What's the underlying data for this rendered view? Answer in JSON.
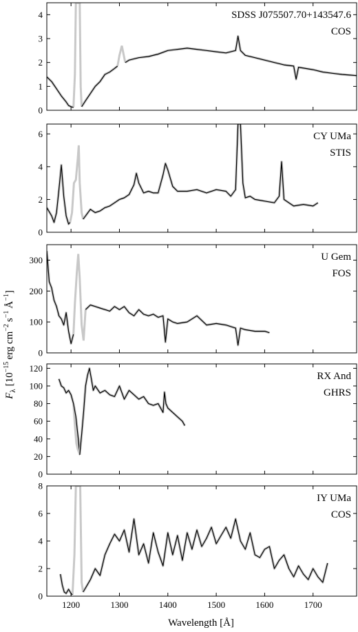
{
  "figure": {
    "xlabel": "Wavelength [Å]",
    "ylabel_main": "F",
    "ylabel_sub": "λ",
    "ylabel_unit_open": "[10",
    "ylabel_exp1": "−15",
    "ylabel_unit_mid1": "erg cm",
    "ylabel_exp2": "−2",
    "ylabel_unit_mid2": "s",
    "ylabel_exp3": "−1",
    "ylabel_unit_mid3": "Å",
    "ylabel_exp4": "−1",
    "ylabel_unit_close": "]"
  },
  "chart_data": [
    {
      "type": "line",
      "labels": [
        "SDSS J075507.70+143547.6",
        "COS"
      ],
      "xlim": [
        1150,
        1790
      ],
      "ylim": [
        0,
        4.5
      ],
      "yticks": [
        0,
        1,
        2,
        3,
        4
      ],
      "xticks": [
        1200,
        1300,
        1400,
        1500,
        1600,
        1700
      ],
      "show_xtick_labels": false,
      "colors": {
        "data": "#000000",
        "masked": "#c8c8c8"
      },
      "series": [
        {
          "x": [
            1150,
            1160,
            1170,
            1180,
            1190,
            1195,
            1200,
            1205
          ],
          "y": [
            1.4,
            1.2,
            0.9,
            0.6,
            0.35,
            0.2,
            0.15,
            0.12
          ]
        },
        {
          "x": [
            1222,
            1230,
            1240,
            1250,
            1260,
            1270,
            1280,
            1290,
            1296
          ],
          "y": [
            0.15,
            0.4,
            0.7,
            1.0,
            1.2,
            1.5,
            1.6,
            1.75,
            1.85
          ]
        },
        {
          "x": [
            1312,
            1320,
            1340,
            1360,
            1380,
            1400,
            1420,
            1440,
            1460,
            1480,
            1500,
            1520,
            1540,
            1545,
            1550,
            1560,
            1580,
            1600,
            1620,
            1640,
            1660,
            1665,
            1670,
            1700,
            1720,
            1740,
            1760,
            1790
          ],
          "y": [
            2.0,
            2.1,
            2.2,
            2.25,
            2.35,
            2.5,
            2.55,
            2.6,
            2.55,
            2.5,
            2.45,
            2.4,
            2.5,
            3.1,
            2.5,
            2.3,
            2.2,
            2.1,
            2.0,
            1.9,
            1.85,
            1.3,
            1.8,
            1.7,
            1.6,
            1.55,
            1.5,
            1.45
          ]
        }
      ],
      "masked": [
        {
          "x": [
            1205,
            1208,
            1210,
            1212,
            1215,
            1218,
            1220,
            1222
          ],
          "y": [
            0.12,
            1.5,
            4.5,
            4.5,
            4.5,
            4.5,
            1.0,
            0.15
          ]
        },
        {
          "x": [
            1296,
            1300,
            1305,
            1310,
            1312
          ],
          "y": [
            1.85,
            2.3,
            2.7,
            2.2,
            2.0
          ]
        }
      ]
    },
    {
      "type": "line",
      "labels": [
        "CY UMa",
        "STIS"
      ],
      "xlim": [
        1150,
        1790
      ],
      "ylim": [
        0,
        6.6
      ],
      "yticks": [
        0,
        2,
        4,
        6
      ],
      "xticks": [
        1200,
        1300,
        1400,
        1500,
        1600,
        1700
      ],
      "show_xtick_labels": false,
      "colors": {
        "data": "#000000",
        "masked": "#c8c8c8"
      },
      "series": [
        {
          "x": [
            1150,
            1160,
            1165,
            1170,
            1175,
            1180,
            1185,
            1190,
            1195,
            1198
          ],
          "y": [
            1.5,
            1.0,
            0.6,
            1.2,
            2.6,
            4.1,
            2.2,
            1.0,
            0.5,
            0.6
          ]
        },
        {
          "x": [
            1225,
            1230,
            1240,
            1250,
            1260,
            1270,
            1280,
            1290,
            1300,
            1310,
            1320,
            1330,
            1335,
            1340,
            1350,
            1360,
            1370,
            1380,
            1390,
            1395,
            1400,
            1410,
            1420,
            1440,
            1460,
            1480,
            1500,
            1520,
            1530,
            1540,
            1545,
            1550,
            1555,
            1560,
            1570,
            1580,
            1600,
            1620,
            1630,
            1635,
            1640,
            1650,
            1660,
            1680,
            1700,
            1710
          ],
          "y": [
            0.8,
            1.0,
            1.4,
            1.2,
            1.3,
            1.5,
            1.6,
            1.8,
            2.0,
            2.1,
            2.3,
            2.9,
            3.6,
            3.0,
            2.4,
            2.5,
            2.4,
            2.4,
            3.5,
            4.2,
            3.8,
            2.8,
            2.5,
            2.5,
            2.6,
            2.4,
            2.6,
            2.5,
            2.2,
            2.6,
            6.6,
            6.6,
            3.0,
            2.1,
            2.2,
            2.0,
            1.9,
            1.8,
            2.2,
            4.3,
            2.0,
            1.8,
            1.6,
            1.7,
            1.6,
            1.8
          ]
        }
      ],
      "masked": [
        {
          "x": [
            1198,
            1202,
            1206,
            1210,
            1214,
            1216,
            1218,
            1222,
            1225
          ],
          "y": [
            0.6,
            1.2,
            3.0,
            3.2,
            4.5,
            5.3,
            3.0,
            1.2,
            0.8
          ]
        }
      ]
    },
    {
      "type": "line",
      "labels": [
        "U Gem",
        "FOS"
      ],
      "xlim": [
        1150,
        1790
      ],
      "ylim": [
        0,
        350
      ],
      "yticks": [
        0,
        100,
        200,
        300
      ],
      "xticks": [
        1200,
        1300,
        1400,
        1500,
        1600,
        1700
      ],
      "show_xtick_labels": false,
      "colors": {
        "data": "#000000",
        "masked": "#c8c8c8"
      },
      "series": [
        {
          "x": [
            1150,
            1155,
            1160,
            1165,
            1170,
            1175,
            1180,
            1185,
            1190,
            1195,
            1200,
            1205
          ],
          "y": [
            330,
            230,
            210,
            170,
            150,
            120,
            110,
            90,
            130,
            70,
            30,
            60
          ]
        },
        {
          "x": [
            1230,
            1240,
            1250,
            1260,
            1270,
            1280,
            1290,
            1300,
            1310,
            1320,
            1330,
            1340,
            1350,
            1360,
            1370,
            1380,
            1390,
            1395,
            1400,
            1410,
            1420,
            1440,
            1460,
            1480,
            1500,
            1520,
            1540,
            1545,
            1550,
            1560,
            1580,
            1600,
            1610
          ],
          "y": [
            140,
            155,
            150,
            145,
            140,
            135,
            150,
            140,
            150,
            130,
            120,
            140,
            125,
            120,
            125,
            115,
            120,
            35,
            110,
            100,
            95,
            100,
            120,
            90,
            95,
            90,
            80,
            25,
            80,
            75,
            70,
            70,
            65
          ]
        }
      ],
      "masked": [
        {
          "x": [
            1205,
            1208,
            1212,
            1215,
            1218,
            1222,
            1226,
            1230
          ],
          "y": [
            60,
            160,
            260,
            320,
            240,
            90,
            40,
            140
          ]
        }
      ]
    },
    {
      "type": "line",
      "labels": [
        "RX And",
        "GHRS"
      ],
      "xlim": [
        1150,
        1790
      ],
      "ylim": [
        0,
        125
      ],
      "yticks": [
        0,
        20,
        40,
        60,
        80,
        100,
        120
      ],
      "xticks": [
        1200,
        1300,
        1400,
        1500,
        1600,
        1700
      ],
      "show_xtick_labels": false,
      "colors": {
        "data": "#000000",
        "masked": "#c8c8c8"
      },
      "series": [
        {
          "x": [
            1175,
            1180,
            1185,
            1190,
            1195,
            1200,
            1205,
            1210,
            1215,
            1218
          ],
          "y": [
            108,
            100,
            98,
            92,
            95,
            90,
            80,
            65,
            40,
            22
          ]
        },
        {
          "x": [
            1218,
            1222,
            1226,
            1230,
            1234,
            1238,
            1242,
            1246,
            1250,
            1260,
            1270,
            1280,
            1290,
            1300,
            1310,
            1320,
            1330,
            1340,
            1350,
            1360,
            1370,
            1380,
            1390,
            1393,
            1396,
            1400,
            1410,
            1420,
            1430,
            1435
          ],
          "y": [
            22,
            45,
            70,
            100,
            112,
            120,
            108,
            95,
            100,
            92,
            95,
            90,
            88,
            100,
            85,
            95,
            90,
            85,
            88,
            80,
            78,
            80,
            70,
            93,
            80,
            75,
            70,
            65,
            60,
            55
          ]
        }
      ],
      "masked": [
        {
          "x": [
            1205,
            1208,
            1211,
            1214,
            1217,
            1220
          ],
          "y": [
            80,
            55,
            35,
            28,
            24,
            30
          ]
        }
      ]
    },
    {
      "type": "line",
      "labels": [
        "IY UMa",
        "COS"
      ],
      "xlim": [
        1150,
        1790
      ],
      "ylim": [
        0,
        8
      ],
      "yticks": [
        0,
        2,
        4,
        6,
        8
      ],
      "xticks": [
        1200,
        1300,
        1400,
        1500,
        1600,
        1700
      ],
      "xtick_labels": [
        "1200",
        "1300",
        "1400",
        "1500",
        "1600",
        "1700"
      ],
      "show_xtick_labels": true,
      "colors": {
        "data": "#000000",
        "masked": "#c8c8c8"
      },
      "series": [
        {
          "x": [
            1178,
            1182,
            1186,
            1190,
            1195,
            1200,
            1203
          ],
          "y": [
            1.6,
            0.8,
            0.3,
            0.2,
            0.5,
            0.2,
            0.1
          ]
        },
        {
          "x": [
            1225,
            1230,
            1240,
            1250,
            1260,
            1270,
            1280,
            1290,
            1300,
            1310,
            1320,
            1330,
            1340,
            1350,
            1360,
            1370,
            1380,
            1390,
            1400,
            1410,
            1420,
            1430,
            1440,
            1450,
            1460,
            1470,
            1480,
            1490,
            1500,
            1510,
            1520,
            1530,
            1540,
            1550,
            1560,
            1570,
            1580,
            1590,
            1600,
            1610,
            1620,
            1630,
            1640,
            1650,
            1660,
            1670,
            1680,
            1690,
            1700,
            1710,
            1720,
            1730
          ],
          "y": [
            0.3,
            0.6,
            1.2,
            2.0,
            1.5,
            3.0,
            3.8,
            4.5,
            4.0,
            4.8,
            3.2,
            5.6,
            3.0,
            3.8,
            2.4,
            4.6,
            3.2,
            2.2,
            4.6,
            3.0,
            4.4,
            2.6,
            4.6,
            3.4,
            4.8,
            3.6,
            4.2,
            5.0,
            3.8,
            4.4,
            5.0,
            4.2,
            5.6,
            4.0,
            3.4,
            4.6,
            3.0,
            2.8,
            3.4,
            3.6,
            2.0,
            2.6,
            3.0,
            2.0,
            1.4,
            2.2,
            1.6,
            1.2,
            2.0,
            1.4,
            1.0,
            2.4
          ]
        }
      ],
      "masked": [
        {
          "x": [
            1203,
            1207,
            1210,
            1213,
            1216,
            1219,
            1222,
            1225
          ],
          "y": [
            0.1,
            3.0,
            8.0,
            8.0,
            8.0,
            8.0,
            1.0,
            0.3
          ]
        }
      ]
    }
  ]
}
